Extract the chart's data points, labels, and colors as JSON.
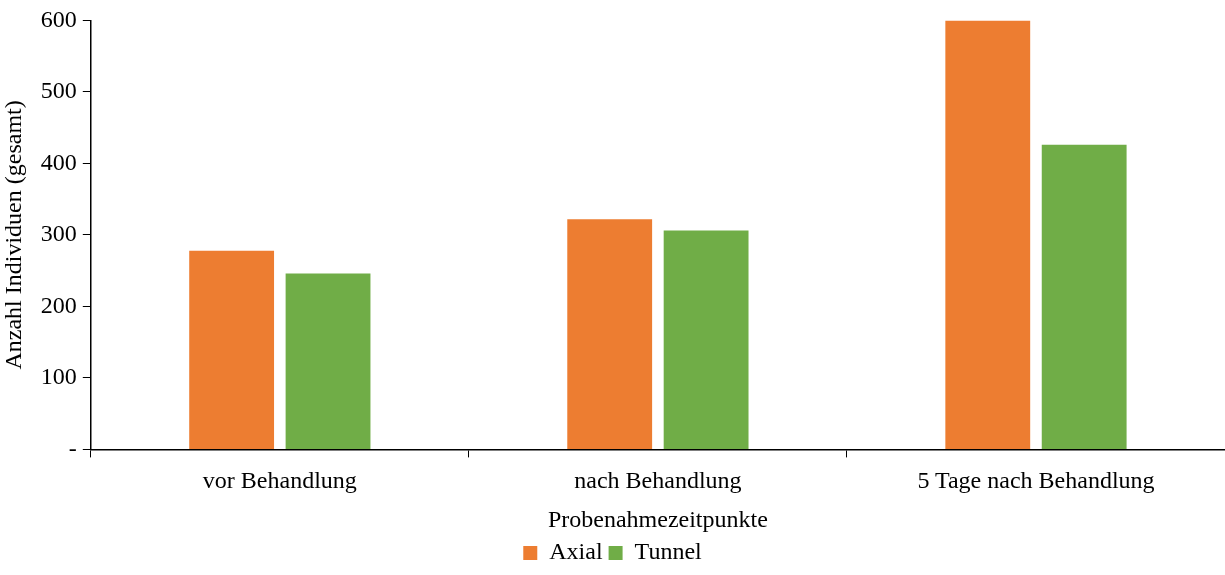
{
  "chart_data": {
    "type": "bar",
    "xlabel": "Probenahmezeitpunkte",
    "ylabel": "Anzahl Individuen (gesamt)",
    "categories": [
      "vor Behandlung",
      "nach Behandlung",
      "5 Tage nach Behandlung"
    ],
    "series": [
      {
        "name": "Axial",
        "color": "#ed7d31",
        "values": [
          278,
          322,
          600
        ]
      },
      {
        "name": "Tunnel",
        "color": "#70ad47",
        "values": [
          246,
          306,
          426
        ]
      }
    ],
    "ylim": [
      0,
      600
    ],
    "yticks": [
      {
        "value": 0,
        "label": "-"
      },
      100,
      200,
      300,
      400,
      500,
      600
    ],
    "grid": false,
    "legend": "bottom"
  }
}
